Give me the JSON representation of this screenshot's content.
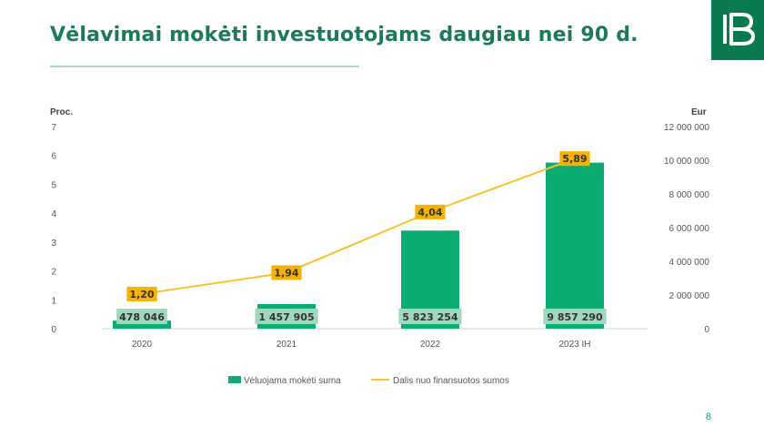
{
  "page": {
    "title": "Vėlavimai mokėti investuotojams daugiau nei 90 d.",
    "page_number": "8"
  },
  "colors": {
    "bar": "#0bab72",
    "bar_label_bg": "#9fd8bd",
    "line": "#fbc02d",
    "line_label_bg": "#f7b200",
    "title": "#1d7a56",
    "logo_bg": "#0a7a4f"
  },
  "chart_data": {
    "type": "bar",
    "categories": [
      "2020",
      "2021",
      "2022",
      "2023 IH"
    ],
    "series": [
      {
        "name": "Vėluojama mokėti suma",
        "type": "bar",
        "axis": "right",
        "values": [
          478046,
          1457905,
          5823254,
          9857290
        ],
        "labels": [
          "478 046",
          "1 457 905",
          "5 823 254",
          "9 857 290"
        ]
      },
      {
        "name": "Dalis nuo finansuotos sumos",
        "type": "line",
        "axis": "left",
        "values": [
          1.2,
          1.94,
          4.04,
          5.89
        ],
        "labels": [
          "1,20",
          "1,94",
          "4,04",
          "5,89"
        ]
      }
    ],
    "y_left": {
      "label": "Proc.",
      "range": [
        0,
        7
      ],
      "ticks": [
        "0",
        "1",
        "2",
        "3",
        "4",
        "5",
        "6",
        "7"
      ]
    },
    "y_right": {
      "label": "Eur",
      "range": [
        0,
        12000000
      ],
      "ticks": [
        "0",
        "2 000 000",
        "4 000 000",
        "6 000 000",
        "8 000 000",
        "10 000 000",
        "12 000 000"
      ]
    },
    "grid": false,
    "legend": "bottom"
  }
}
